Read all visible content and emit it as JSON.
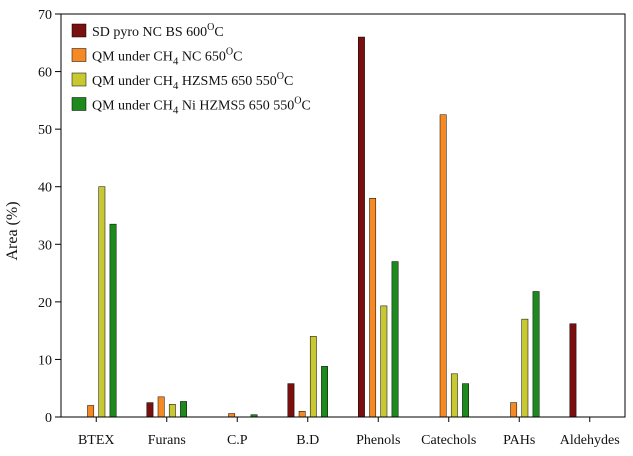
{
  "chart_data": {
    "type": "bar",
    "title": "",
    "xlabel": "",
    "ylabel": "Area (%)",
    "ylim": [
      0,
      70
    ],
    "yticks": [
      0,
      10,
      20,
      30,
      40,
      50,
      60,
      70
    ],
    "grid": false,
    "legend_position": "top-left",
    "categories": [
      "BTEX",
      "Furans",
      "C.P",
      "B.D",
      "Phenols",
      "Catechols",
      "PAHs",
      "Aldehydes"
    ],
    "series": [
      {
        "name": "SD pyro NC BS 600°C",
        "legend_parts": [
          {
            "text": "SD pyro NC BS 600",
            "style": "normal"
          },
          {
            "text": "O",
            "style": "sup"
          },
          {
            "text": "C",
            "style": "normal"
          }
        ],
        "color": "#7a0f10",
        "values": [
          0,
          2.5,
          0,
          5.8,
          66,
          0,
          0,
          16.2
        ]
      },
      {
        "name": "QM under CH4 NC 650°C",
        "legend_parts": [
          {
            "text": "QM under CH",
            "style": "normal"
          },
          {
            "text": "4",
            "style": "sub"
          },
          {
            "text": " NC 650",
            "style": "normal"
          },
          {
            "text": "O",
            "style": "sup"
          },
          {
            "text": "C",
            "style": "normal"
          }
        ],
        "color": "#f58a25",
        "values": [
          2,
          3.5,
          0.6,
          1,
          38,
          52.5,
          2.5,
          0
        ]
      },
      {
        "name": "QM under CH4 HZSM5 650 550°C",
        "legend_parts": [
          {
            "text": "QM under CH",
            "style": "normal"
          },
          {
            "text": "4",
            "style": "sub"
          },
          {
            "text": " HZSM5 650 550",
            "style": "normal"
          },
          {
            "text": "O",
            "style": "sup"
          },
          {
            "text": "C",
            "style": "normal"
          }
        ],
        "color": "#c8c832",
        "values": [
          40,
          2.2,
          0,
          14,
          19.3,
          7.5,
          17,
          0
        ]
      },
      {
        "name": "QM under CH4 Ni HZMS5 650 550°C",
        "legend_parts": [
          {
            "text": "QM under CH",
            "style": "normal"
          },
          {
            "text": "4",
            "style": "sub"
          },
          {
            "text": " Ni HZMS5 650 550",
            "style": "normal"
          },
          {
            "text": "O",
            "style": "sup"
          },
          {
            "text": "C",
            "style": "normal"
          }
        ],
        "color": "#1e8a1e",
        "values": [
          33.5,
          2.7,
          0.4,
          8.8,
          27,
          5.8,
          21.8,
          0
        ]
      }
    ]
  }
}
